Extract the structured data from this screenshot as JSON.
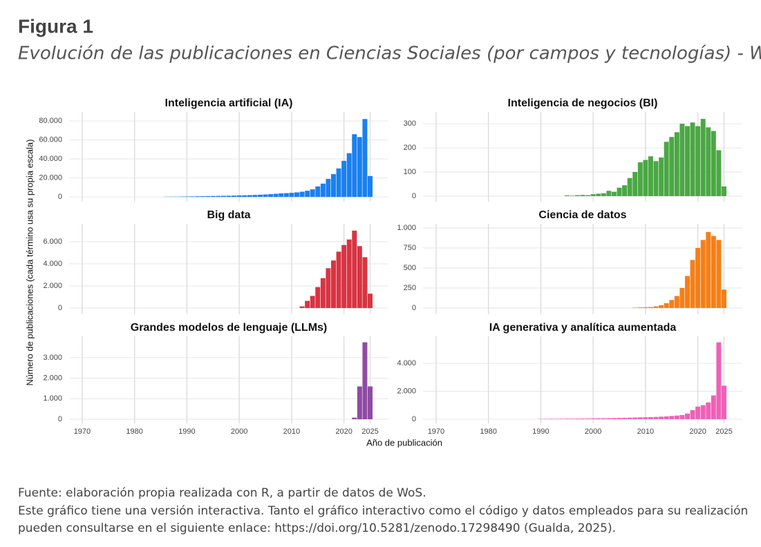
{
  "figure": {
    "title": "Figura 1",
    "subtitle": "Evolución de las publicaciones en Ciencias Sociales (por campos y tecnologías) - WoS"
  },
  "y_axis_label": "Número de publicaciones (cada término usa su propia escala)",
  "x_axis_label": "Año de publicación",
  "notes": [
    "Fuente: elaboración propia realizada con R, a partir de datos de WoS.",
    "Este gráfico tiene una versión interactiva. Tanto el gráfico interactivo como el código y datos empleados para su realización",
    "pueden consultarse en el siguiente enlace: https://doi.org/10.5281/zenodo.17298490 (Gualda, 2025)."
  ],
  "chart_data": [
    {
      "type": "bar",
      "title": "Inteligencia artificial (IA)",
      "color": "#1a80f0",
      "grid": true,
      "x": [
        1986,
        1987,
        1988,
        1989,
        1990,
        1991,
        1992,
        1993,
        1994,
        1995,
        1996,
        1997,
        1998,
        1999,
        2000,
        2001,
        2002,
        2003,
        2004,
        2005,
        2006,
        2007,
        2008,
        2009,
        2010,
        2011,
        2012,
        2013,
        2014,
        2015,
        2016,
        2017,
        2018,
        2019,
        2020,
        2021,
        2022,
        2023,
        2024,
        2025
      ],
      "values": [
        200,
        250,
        300,
        400,
        500,
        600,
        700,
        800,
        900,
        1000,
        1100,
        1200,
        1300,
        1400,
        1600,
        1700,
        1900,
        2100,
        2300,
        2600,
        2900,
        3300,
        3700,
        4000,
        4300,
        4800,
        5500,
        6500,
        8000,
        11000,
        14000,
        19000,
        24000,
        30000,
        38000,
        46000,
        66000,
        63000,
        82000,
        22000
      ],
      "xlim": [
        1967.5,
        2028.5
      ],
      "xticks": [
        1970,
        1980,
        1990,
        2000,
        2010,
        2020,
        2025
      ],
      "ylim": [
        -5000,
        89500
      ],
      "yticks": [
        0,
        {
          "value": 20000,
          "label": "20.000"
        },
        {
          "value": 40000,
          "label": "40.000"
        },
        {
          "value": 60000,
          "label": "60.000"
        },
        {
          "value": 80000,
          "label": "80.000"
        }
      ]
    },
    {
      "type": "bar",
      "title": "Inteligencia de negocios (BI)",
      "color": "#4aa844",
      "grid": true,
      "x": [
        1995,
        1996,
        1997,
        1998,
        1999,
        2000,
        2001,
        2002,
        2003,
        2004,
        2005,
        2006,
        2007,
        2008,
        2009,
        2010,
        2011,
        2012,
        2013,
        2014,
        2015,
        2016,
        2017,
        2018,
        2019,
        2020,
        2021,
        2022,
        2023,
        2024,
        2025
      ],
      "values": [
        3,
        2,
        4,
        5,
        4,
        8,
        10,
        12,
        22,
        18,
        35,
        45,
        75,
        100,
        140,
        150,
        165,
        145,
        160,
        225,
        245,
        265,
        300,
        290,
        305,
        290,
        320,
        285,
        270,
        190,
        40
      ],
      "xlim": [
        1967.5,
        2028.5
      ],
      "xticks": [
        1970,
        1980,
        1990,
        2000,
        2010,
        2020,
        2025
      ],
      "ylim": [
        -23,
        349
      ],
      "yticks": [
        0,
        100,
        200,
        300
      ]
    },
    {
      "type": "bar",
      "title": "Big data",
      "color": "#d83442",
      "grid": true,
      "x": [
        2012,
        2013,
        2014,
        2015,
        2016,
        2017,
        2018,
        2019,
        2020,
        2021,
        2022,
        2023,
        2024,
        2025
      ],
      "values": [
        150,
        650,
        1100,
        1900,
        2700,
        3600,
        4300,
        5100,
        5700,
        6200,
        7000,
        5600,
        4600,
        1300
      ],
      "xlim": [
        1967.5,
        2028.5
      ],
      "xticks": [
        1970,
        1980,
        1990,
        2000,
        2010,
        2020,
        2025
      ],
      "ylim": [
        -560,
        7620
      ],
      "yticks": [
        0,
        {
          "value": 2000,
          "label": "2.000"
        },
        {
          "value": 4000,
          "label": "4.000"
        },
        {
          "value": 6000,
          "label": "6.000"
        }
      ]
    },
    {
      "type": "bar",
      "title": "Ciencia de datos",
      "color": "#f57f17",
      "grid": true,
      "x": [
        2008,
        2009,
        2010,
        2011,
        2012,
        2013,
        2014,
        2015,
        2016,
        2017,
        2018,
        2019,
        2020,
        2021,
        2022,
        2023,
        2024,
        2025
      ],
      "values": [
        5,
        8,
        10,
        12,
        20,
        35,
        60,
        100,
        150,
        250,
        400,
        600,
        750,
        850,
        950,
        900,
        850,
        230
      ],
      "xlim": [
        1967.5,
        2028.5
      ],
      "xticks": [
        1970,
        1980,
        1990,
        2000,
        2010,
        2020,
        2025
      ],
      "ylim": [
        -78,
        1052
      ],
      "yticks": [
        0,
        250,
        500,
        750,
        {
          "value": 1000,
          "label": "1.000"
        }
      ]
    },
    {
      "type": "bar",
      "title": "Grandes modelos de lenguaje (LLMs)",
      "color": "#8e4ba4",
      "grid": true,
      "x": [
        2022,
        2023,
        2024,
        2025
      ],
      "values": [
        80,
        1600,
        3750,
        1600
      ],
      "xlim": [
        1967.5,
        2028.5
      ],
      "xticks": [
        1970,
        1980,
        1990,
        2000,
        2010,
        2020,
        2025
      ],
      "ylim": [
        -200,
        4040
      ],
      "yticks": [
        0,
        {
          "value": 1000,
          "label": "1.000"
        },
        {
          "value": 2000,
          "label": "2.000"
        },
        {
          "value": 3000,
          "label": "3.000"
        }
      ]
    },
    {
      "type": "bar",
      "title": "IA generativa y analítica aumentada",
      "color": "#f060b8",
      "grid": true,
      "x": [
        1990,
        1991,
        1992,
        1993,
        1994,
        1995,
        1996,
        1997,
        1998,
        1999,
        2000,
        2001,
        2002,
        2003,
        2004,
        2005,
        2006,
        2007,
        2008,
        2009,
        2010,
        2011,
        2012,
        2013,
        2014,
        2015,
        2016,
        2017,
        2018,
        2019,
        2020,
        2021,
        2022,
        2023,
        2024,
        2025
      ],
      "values": [
        20,
        25,
        30,
        30,
        35,
        40,
        40,
        45,
        50,
        55,
        60,
        65,
        70,
        75,
        80,
        90,
        100,
        110,
        120,
        130,
        140,
        150,
        160,
        180,
        200,
        230,
        260,
        300,
        400,
        650,
        900,
        1000,
        1200,
        1700,
        5500,
        2400
      ],
      "xlim": [
        1967.5,
        2028.5
      ],
      "xticks": [
        1970,
        1980,
        1990,
        2000,
        2010,
        2020,
        2025
      ],
      "ylim": [
        -300,
        5930
      ],
      "yticks": [
        0,
        {
          "value": 2000,
          "label": "2.000"
        },
        {
          "value": 4000,
          "label": "4.000"
        }
      ]
    }
  ]
}
